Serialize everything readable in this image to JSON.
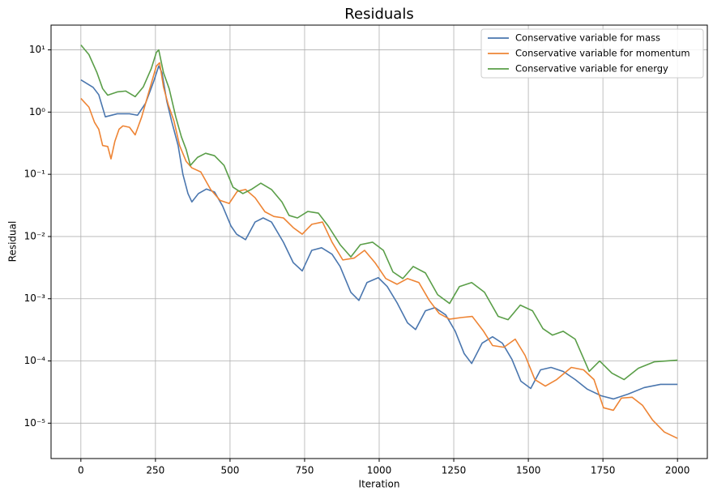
{
  "chart_data": {
    "type": "line",
    "title": "Residuals",
    "x_label": "Iteration",
    "y_label": "Residual",
    "log_y": true,
    "grid": true,
    "legend": "upper right",
    "xlim": [
      -100,
      2100
    ],
    "ylim": [
      2.7e-06,
      25
    ],
    "xticks": [
      0,
      250,
      500,
      750,
      1000,
      1250,
      1500,
      1750,
      2000
    ],
    "yticks": [
      {
        "value": 1e-05,
        "label": "10⁻⁵"
      },
      {
        "value": 0.0001,
        "label": "10⁻⁴"
      },
      {
        "value": 0.001,
        "label": "10⁻³"
      },
      {
        "value": 0.01,
        "label": "10⁻²"
      },
      {
        "value": 0.1,
        "label": "10⁻¹"
      },
      {
        "value": 1,
        "label": "10⁰"
      },
      {
        "value": 10,
        "label": "10¹"
      }
    ],
    "series": [
      {
        "name": "Conservative variable for mass",
        "color": "#4a76ae",
        "x": [
          0,
          41,
          60,
          82,
          122,
          163,
          190,
          217,
          245,
          261,
          272,
          288,
          304,
          326,
          342,
          359,
          372,
          394,
          421,
          448,
          475,
          503,
          522,
          552,
          584,
          611,
          639,
          679,
          712,
          742,
          774,
          807,
          842,
          869,
          905,
          932,
          959,
          997,
          1027,
          1060,
          1095,
          1122,
          1155,
          1187,
          1223,
          1255,
          1285,
          1310,
          1345,
          1380,
          1413,
          1445,
          1475,
          1508,
          1541,
          1576,
          1617,
          1657,
          1698,
          1744,
          1785,
          1834,
          1888,
          1943,
          2000
        ],
        "values": [
          3.3,
          2.5,
          1.9,
          0.84,
          0.94,
          0.94,
          0.89,
          1.39,
          3.2,
          5.5,
          4.3,
          1.5,
          0.72,
          0.29,
          0.1,
          0.049,
          0.036,
          0.049,
          0.058,
          0.052,
          0.031,
          0.0148,
          0.0109,
          0.0089,
          0.0171,
          0.0199,
          0.0171,
          0.0081,
          0.0038,
          0.0028,
          0.006,
          0.0066,
          0.0052,
          0.0033,
          0.00127,
          0.00094,
          0.00182,
          0.00218,
          0.00157,
          0.00086,
          0.00041,
          0.00032,
          0.00064,
          0.00072,
          0.00055,
          0.0003,
          0.000131,
          9.1e-05,
          0.000193,
          0.000245,
          0.000193,
          0.000106,
          4.73e-05,
          3.61e-05,
          7.2e-05,
          7.87e-05,
          6.78e-05,
          5.02e-05,
          3.51e-05,
          2.76e-05,
          2.45e-05,
          2.93e-05,
          3.73e-05,
          4.2e-05,
          4.2e-05
        ]
      },
      {
        "name": "Conservative variable for momentum",
        "color": "#ee8434",
        "x": [
          0,
          27,
          46,
          60,
          73,
          90,
          101,
          114,
          128,
          141,
          163,
          182,
          204,
          231,
          253,
          264,
          277,
          293,
          312,
          331,
          353,
          372,
          402,
          435,
          467,
          497,
          524,
          552,
          584,
          617,
          647,
          679,
          712,
          742,
          774,
          810,
          842,
          878,
          916,
          951,
          986,
          1022,
          1060,
          1095,
          1133,
          1168,
          1201,
          1236,
          1277,
          1312,
          1350,
          1380,
          1418,
          1456,
          1489,
          1522,
          1557,
          1595,
          1644,
          1685,
          1720,
          1752,
          1785,
          1812,
          1848,
          1883,
          1916,
          1956,
          2000
        ],
        "values": [
          1.66,
          1.2,
          0.68,
          0.53,
          0.29,
          0.28,
          0.177,
          0.34,
          0.53,
          0.6,
          0.57,
          0.43,
          0.84,
          2.38,
          5.5,
          6.2,
          2.53,
          1.31,
          0.72,
          0.29,
          0.161,
          0.127,
          0.109,
          0.057,
          0.038,
          0.034,
          0.053,
          0.057,
          0.042,
          0.025,
          0.021,
          0.0199,
          0.0139,
          0.0109,
          0.0157,
          0.0171,
          0.0081,
          0.0042,
          0.0045,
          0.006,
          0.0038,
          0.00211,
          0.00171,
          0.00211,
          0.00182,
          0.00094,
          0.00058,
          0.00047,
          0.0005,
          0.00052,
          0.0003,
          0.000177,
          0.000166,
          0.000224,
          0.000123,
          5.02e-05,
          3.95e-05,
          5.02e-05,
          7.87e-05,
          7.2e-05,
          5.02e-05,
          1.77e-05,
          1.61e-05,
          2.53e-05,
          2.61e-05,
          1.93e-05,
          1.13e-05,
          7.2e-06,
          5.7e-06
        ]
      },
      {
        "name": "Conservative variable for energy",
        "color": "#5a9e48",
        "x": [
          0,
          27,
          54,
          73,
          90,
          122,
          150,
          182,
          209,
          236,
          253,
          261,
          277,
          296,
          318,
          337,
          353,
          367,
          391,
          418,
          448,
          480,
          510,
          543,
          571,
          603,
          639,
          674,
          698,
          726,
          761,
          796,
          829,
          869,
          905,
          937,
          978,
          1014,
          1046,
          1079,
          1114,
          1155,
          1196,
          1236,
          1269,
          1310,
          1353,
          1399,
          1432,
          1473,
          1514,
          1549,
          1581,
          1617,
          1657,
          1704,
          1739,
          1780,
          1821,
          1869,
          1923,
          2000
        ],
        "values": [
          12.0,
          8.4,
          4.3,
          2.38,
          1.87,
          2.11,
          2.18,
          1.77,
          2.53,
          5.0,
          9.1,
          10.0,
          4.3,
          2.38,
          0.84,
          0.4,
          0.25,
          0.139,
          0.187,
          0.218,
          0.199,
          0.139,
          0.062,
          0.049,
          0.057,
          0.072,
          0.057,
          0.036,
          0.0218,
          0.0199,
          0.0253,
          0.0238,
          0.0148,
          0.0074,
          0.0047,
          0.0074,
          0.0081,
          0.006,
          0.0027,
          0.00211,
          0.0033,
          0.0026,
          0.00116,
          0.00084,
          0.00157,
          0.00182,
          0.00127,
          0.00052,
          0.00046,
          0.00079,
          0.00064,
          0.00033,
          0.00026,
          0.0003,
          0.000224,
          6.8e-05,
          0.0001,
          6.38e-05,
          5.02e-05,
          7.64e-05,
          9.71e-05,
          0.000103
        ]
      }
    ]
  }
}
